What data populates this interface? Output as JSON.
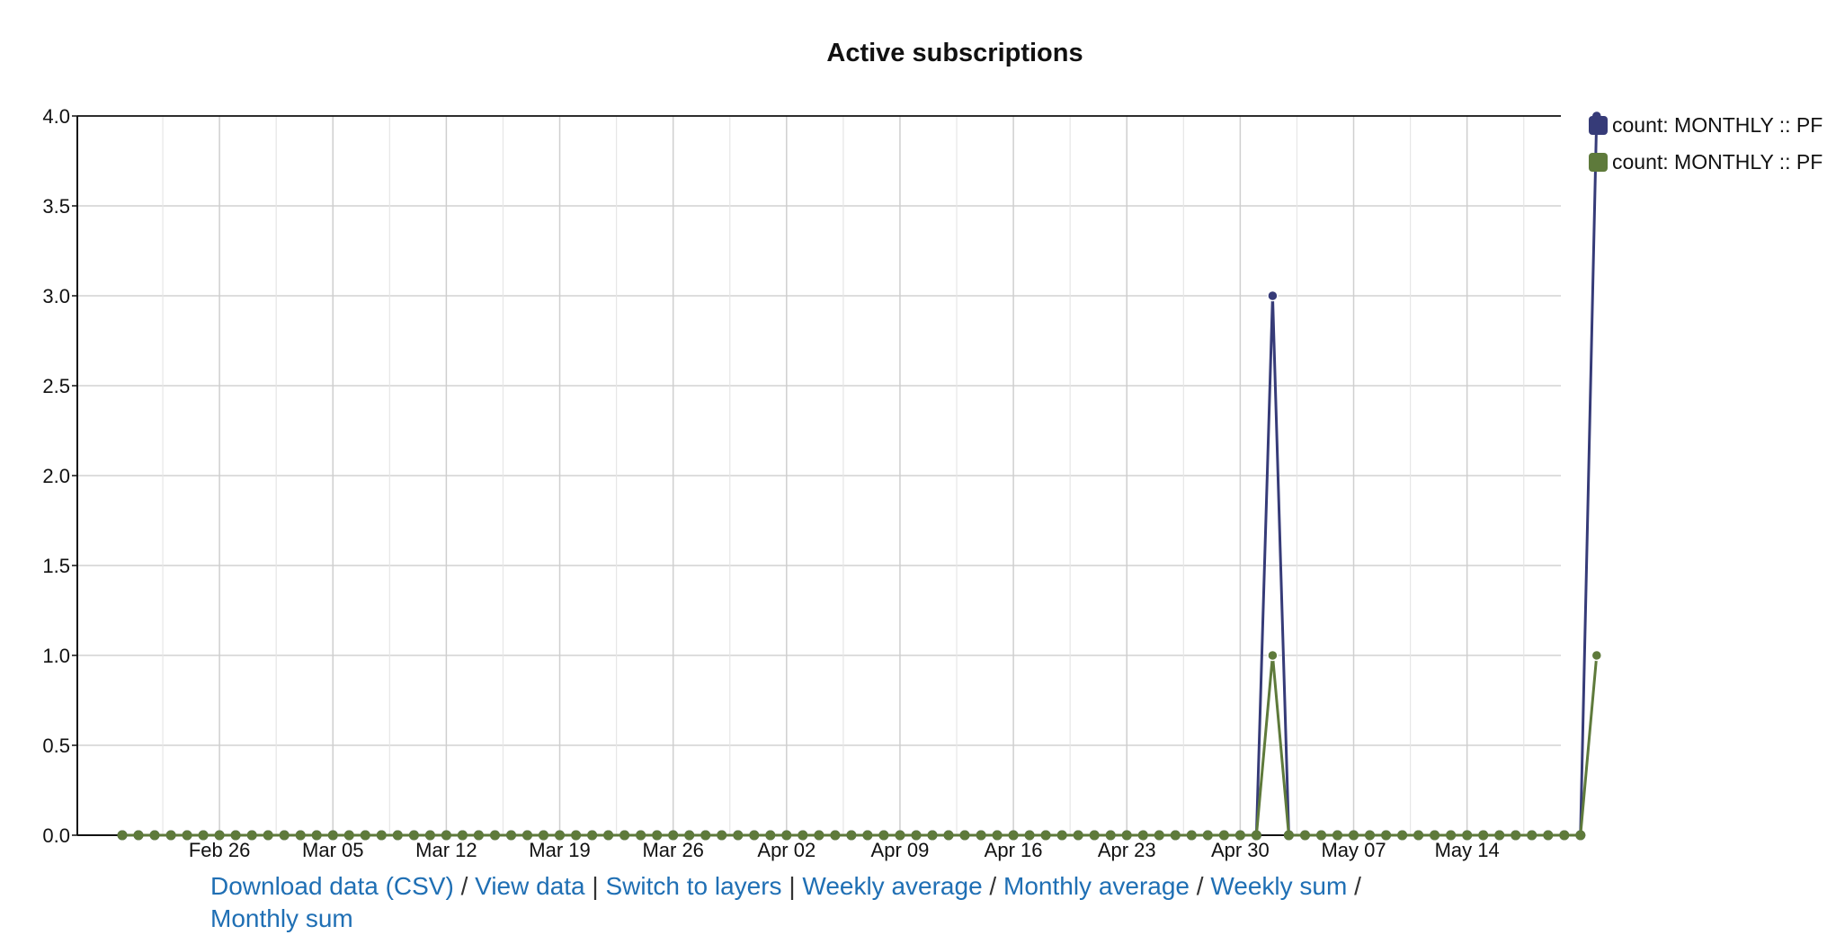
{
  "chart_data": {
    "type": "line",
    "title": "Active subscriptions",
    "xlabel": "",
    "ylabel": "",
    "x_start": "2018-02-20",
    "x_ticks": [
      "Feb 26",
      "Mar 05",
      "Mar 12",
      "Mar 19",
      "Mar 26",
      "Apr 02",
      "Apr 09",
      "Apr 16",
      "Apr 23",
      "Apr 30",
      "May 07",
      "May 14"
    ],
    "x_tick_dates": [
      "2018-02-26",
      "2018-03-05",
      "2018-03-12",
      "2018-03-19",
      "2018-03-26",
      "2018-04-02",
      "2018-04-09",
      "2018-04-16",
      "2018-04-23",
      "2018-04-30",
      "2018-05-07",
      "2018-05-14"
    ],
    "y_ticks": [
      "0.0",
      "0.5",
      "1.0",
      "1.5",
      "2.0",
      "2.5",
      "3.0",
      "3.5",
      "4.0"
    ],
    "ylim": [
      0,
      4
    ],
    "grid": true,
    "legend_position": "top-right",
    "series": [
      {
        "name": "count: MONTHLY :: PF",
        "color": "#363b78",
        "points": [
          [
            "2018-02-20",
            0
          ],
          [
            "2018-05-01",
            0
          ],
          [
            "2018-05-02",
            3
          ],
          [
            "2018-05-03",
            0
          ],
          [
            "2018-05-21",
            0
          ],
          [
            "2018-05-22",
            4
          ]
        ]
      },
      {
        "name": "count: MONTHLY :: PF",
        "color": "#5e7a3b",
        "points": [
          [
            "2018-02-20",
            0
          ],
          [
            "2018-05-01",
            0
          ],
          [
            "2018-05-02",
            1
          ],
          [
            "2018-05-03",
            0
          ],
          [
            "2018-05-21",
            0
          ],
          [
            "2018-05-22",
            1
          ]
        ]
      }
    ]
  },
  "links": {
    "download_csv": "Download data (CSV)",
    "sep1": " / ",
    "view_data": "View data",
    "sep2": " | ",
    "switch_layers": "Switch to layers",
    "sep3": " | ",
    "weekly_avg": "Weekly average",
    "sep4": " / ",
    "monthly_avg": "Monthly average",
    "sep5": " / ",
    "weekly_sum": "Weekly sum",
    "sep6": " / ",
    "monthly_sum": "Monthly sum"
  }
}
